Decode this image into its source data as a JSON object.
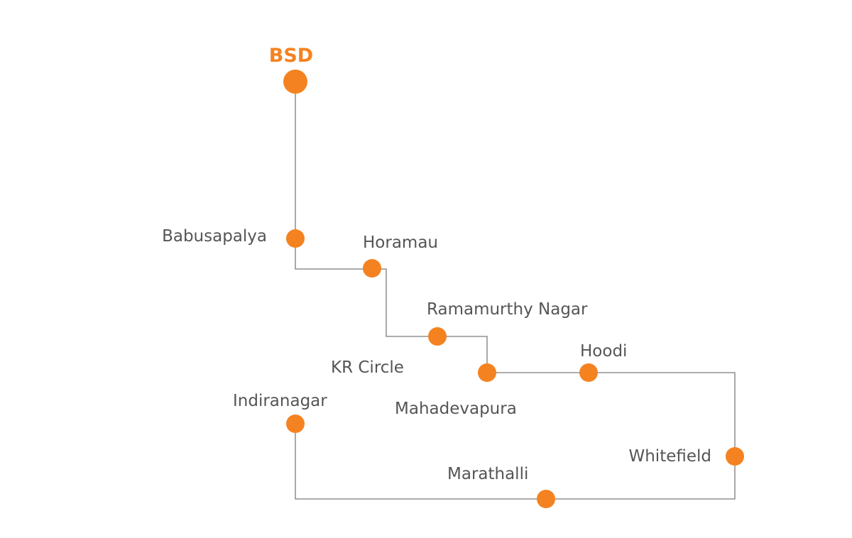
{
  "accent_color": "#f58220",
  "line_color": "#7b7b7b",
  "label_color": "#555555",
  "origin": {
    "label": "BSD"
  },
  "stops": [
    {
      "label": "Babusapalya"
    },
    {
      "label": "Horamau"
    },
    {
      "label": "Ramamurthy Nagar"
    },
    {
      "label": "KR Circle"
    },
    {
      "label": "Mahadevapura"
    },
    {
      "label": "Hoodi"
    },
    {
      "label": "Whitefield"
    },
    {
      "label": "Marathalli"
    },
    {
      "label": "Indiranagar"
    }
  ]
}
